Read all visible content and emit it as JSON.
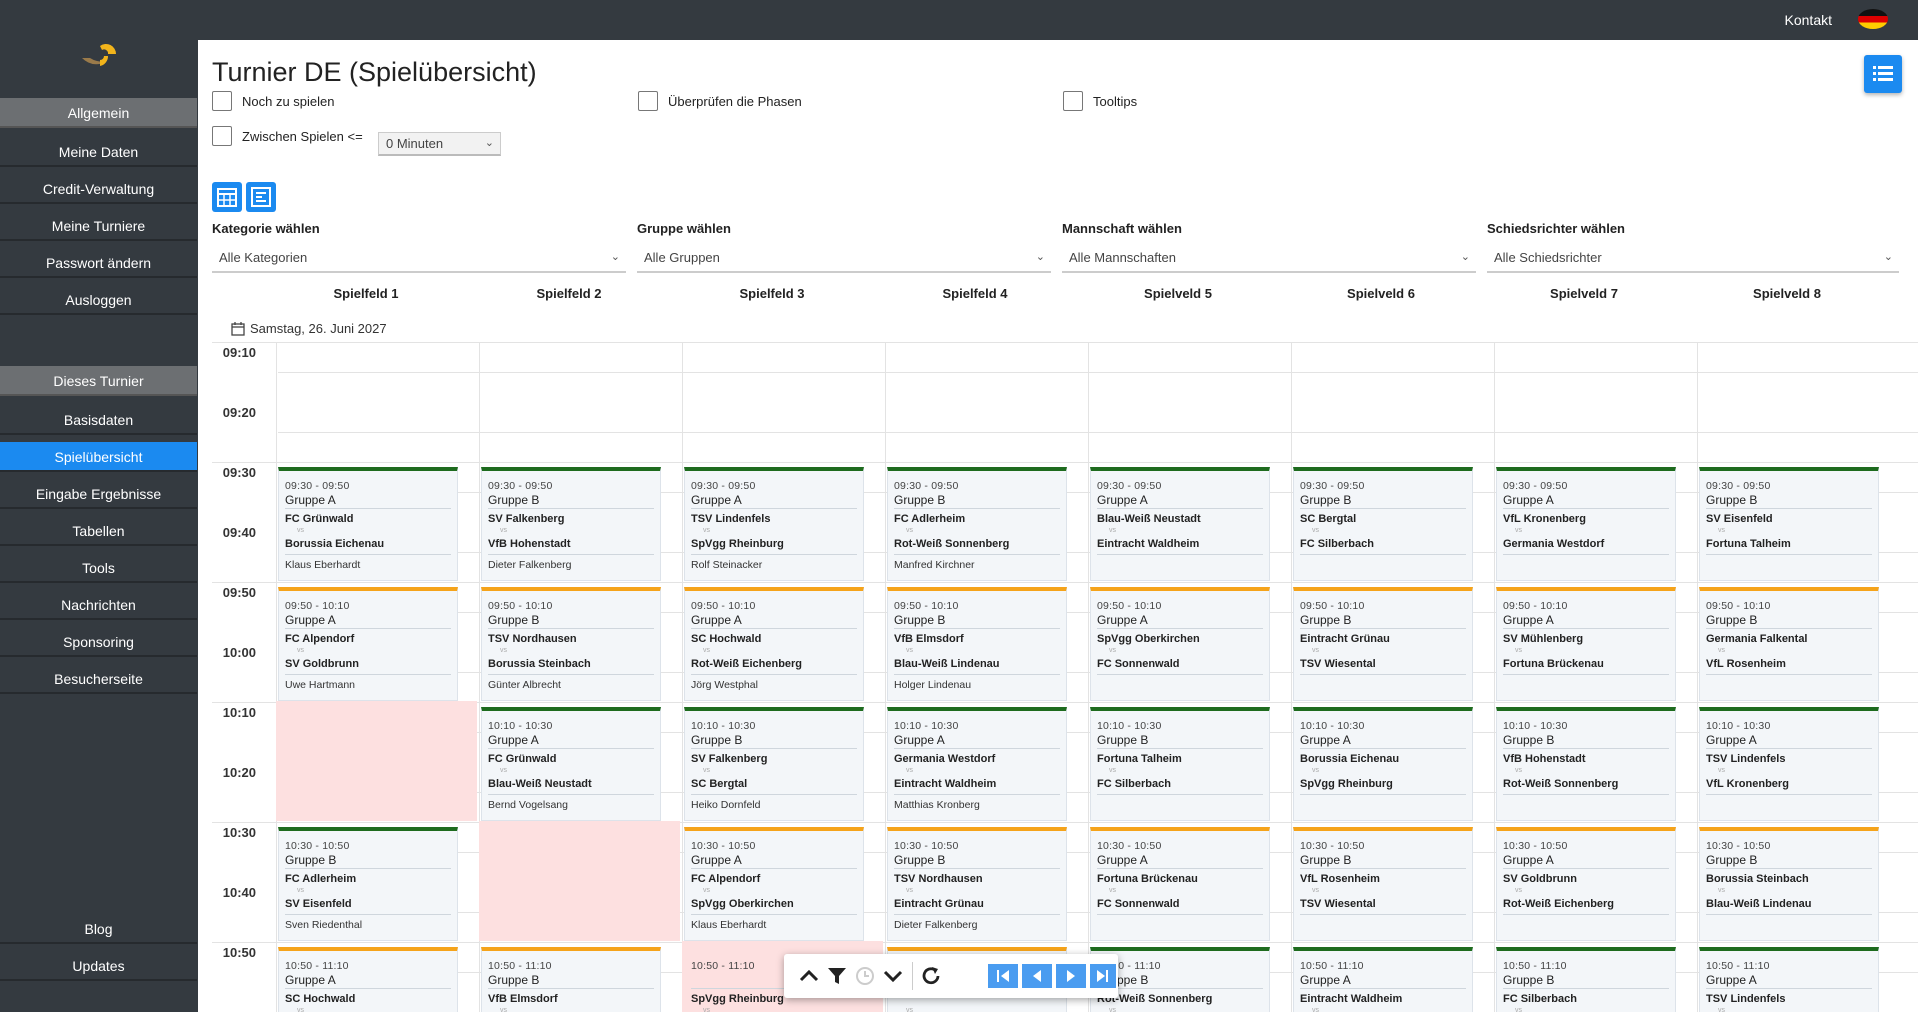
{
  "header": {
    "kontakt": "Kontakt"
  },
  "sidebar": {
    "section1": "Allgemein",
    "items1": [
      "Meine Daten",
      "Credit-Verwaltung",
      "Meine Turniere",
      "Passwort ändern",
      "Ausloggen"
    ],
    "section2": "Dieses Turnier",
    "items2": [
      "Basisdaten",
      "Spielübersicht",
      "Eingabe Ergebnisse",
      "Tabellen",
      "Tools",
      "Nachrichten",
      "Sponsoring",
      "Besucherseite"
    ],
    "active": "Spielübersicht",
    "bottom": [
      "Blog",
      "Updates"
    ]
  },
  "page": {
    "title": "Turnier DE (Spielübersicht)",
    "checkboxes": {
      "noch": "Noch zu spielen",
      "phasen": "Überprüfen die Phasen",
      "tooltips": "Tooltips",
      "zwischen": "Zwischen Spielen <="
    },
    "minutes_select": "0 Minuten"
  },
  "filters": [
    {
      "label": "Kategorie wählen",
      "value": "Alle Kategorien"
    },
    {
      "label": "Gruppe wählen",
      "value": "Alle Gruppen"
    },
    {
      "label": "Mannschaft wählen",
      "value": "Alle Mannschaften"
    },
    {
      "label": "Schiedsrichter wählen",
      "value": "Alle Schiedsrichter"
    }
  ],
  "fields": [
    "Spielfeld 1",
    "Spielfeld 2",
    "Spielfeld 3",
    "Spielfeld 4",
    "Spielveld 5",
    "Spielveld 6",
    "Spielveld 7",
    "Spielveld 8"
  ],
  "date": "Samstag, 26. Juni 2027",
  "times": [
    "09:10",
    "09:20",
    "09:30",
    "09:40",
    "09:50",
    "10:00",
    "10:10",
    "10:20",
    "10:30",
    "10:40",
    "10:50"
  ],
  "vs_label": "vs",
  "colors": {
    "accent": "#1b8af0",
    "status_played": "#1e6b1e",
    "status_pending": "#f5a31a",
    "empty_slot": "#fde0e0"
  },
  "rows": [
    {
      "time": "09:30 - 09:50",
      "cells": [
        {
          "g": "Gruppe A",
          "t1": "FC Grünwald",
          "t2": "Borussia Eichenau",
          "r": "Klaus Eberhardt",
          "s": "g"
        },
        {
          "g": "Gruppe B",
          "t1": "SV Falkenberg",
          "t2": "VfB Hohenstadt",
          "r": "Dieter Falkenberg",
          "s": "g"
        },
        {
          "g": "Gruppe A",
          "t1": "TSV Lindenfels",
          "t2": "SpVgg Rheinburg",
          "r": "Rolf Steinacker",
          "s": "g"
        },
        {
          "g": "Gruppe B",
          "t1": "FC Adlerheim",
          "t2": "Rot-Weiß Sonnenberg",
          "r": "Manfred Kirchner",
          "s": "g"
        },
        {
          "g": "Gruppe A",
          "t1": "Blau-Weiß Neustadt",
          "t2": "Eintracht Waldheim",
          "r": "",
          "s": "g"
        },
        {
          "g": "Gruppe B",
          "t1": "SC Bergtal",
          "t2": "FC Silberbach",
          "r": "",
          "s": "g"
        },
        {
          "g": "Gruppe A",
          "t1": "VfL Kronenberg",
          "t2": "Germania Westdorf",
          "r": "",
          "s": "g"
        },
        {
          "g": "Gruppe B",
          "t1": "SV Eisenfeld",
          "t2": "Fortuna Talheim",
          "r": "",
          "s": "g"
        }
      ]
    },
    {
      "time": "09:50 - 10:10",
      "cells": [
        {
          "g": "Gruppe A",
          "t1": "FC Alpendorf",
          "t2": "SV Goldbrunn",
          "r": "Uwe Hartmann",
          "s": "o"
        },
        {
          "g": "Gruppe B",
          "t1": "TSV Nordhausen",
          "t2": "Borussia Steinbach",
          "r": "Günter Albrecht",
          "s": "o"
        },
        {
          "g": "Gruppe A",
          "t1": "SC Hochwald",
          "t2": "Rot-Weiß Eichenberg",
          "r": "Jörg Westphal",
          "s": "o"
        },
        {
          "g": "Gruppe B",
          "t1": "VfB Elmsdorf",
          "t2": "Blau-Weiß Lindenau",
          "r": "Holger Lindenau",
          "s": "o"
        },
        {
          "g": "Gruppe A",
          "t1": "SpVgg Oberkirchen",
          "t2": "FC Sonnenwald",
          "r": "",
          "s": "o"
        },
        {
          "g": "Gruppe B",
          "t1": "Eintracht Grünau",
          "t2": "TSV Wiesental",
          "r": "",
          "s": "o"
        },
        {
          "g": "Gruppe A",
          "t1": "SV Mühlenberg",
          "t2": "Fortuna Brückenau",
          "r": "",
          "s": "o"
        },
        {
          "g": "Gruppe B",
          "t1": "Germania Falkental",
          "t2": "VfL Rosenheim",
          "r": "",
          "s": "o"
        }
      ]
    },
    {
      "time": "10:10 - 10:30",
      "cells": [
        null,
        {
          "g": "Gruppe A",
          "t1": "FC Grünwald",
          "t2": "Blau-Weiß Neustadt",
          "r": "Bernd Vogelsang",
          "s": "g"
        },
        {
          "g": "Gruppe B",
          "t1": "SV Falkenberg",
          "t2": "SC Bergtal",
          "r": "Heiko Dornfeld",
          "s": "g"
        },
        {
          "g": "Gruppe A",
          "t1": "Germania Westdorf",
          "t2": "Eintracht Waldheim",
          "r": "Matthias Kronberg",
          "s": "g"
        },
        {
          "g": "Gruppe B",
          "t1": "Fortuna Talheim",
          "t2": "FC Silberbach",
          "r": "",
          "s": "g"
        },
        {
          "g": "Gruppe A",
          "t1": "Borussia Eichenau",
          "t2": "SpVgg Rheinburg",
          "r": "",
          "s": "g"
        },
        {
          "g": "Gruppe B",
          "t1": "VfB Hohenstadt",
          "t2": "Rot-Weiß Sonnenberg",
          "r": "",
          "s": "g"
        },
        {
          "g": "Gruppe A",
          "t1": "TSV Lindenfels",
          "t2": "VfL Kronenberg",
          "r": "",
          "s": "g"
        }
      ]
    },
    {
      "time": "10:30 - 10:50",
      "cells": [
        {
          "g": "Gruppe B",
          "t1": "FC Adlerheim",
          "t2": "SV Eisenfeld",
          "r": "Sven Riedenthal",
          "s": "g"
        },
        null,
        {
          "g": "Gruppe A",
          "t1": "FC Alpendorf",
          "t2": "SpVgg Oberkirchen",
          "r": "Klaus Eberhardt",
          "s": "o"
        },
        {
          "g": "Gruppe B",
          "t1": "TSV Nordhausen",
          "t2": "Eintracht Grünau",
          "r": "Dieter Falkenberg",
          "s": "o"
        },
        {
          "g": "Gruppe A",
          "t1": "Fortuna Brückenau",
          "t2": "FC Sonnenwald",
          "r": "",
          "s": "o"
        },
        {
          "g": "Gruppe B",
          "t1": "VfL Rosenheim",
          "t2": "TSV Wiesental",
          "r": "",
          "s": "o"
        },
        {
          "g": "Gruppe A",
          "t1": "SV Goldbrunn",
          "t2": "Rot-Weiß Eichenberg",
          "r": "",
          "s": "o"
        },
        {
          "g": "Gruppe B",
          "t1": "Borussia Steinbach",
          "t2": "Blau-Weiß Lindenau",
          "r": "",
          "s": "o"
        }
      ]
    },
    {
      "time": "10:50 - 11:10",
      "cells": [
        {
          "g": "Gruppe A",
          "t1": "SC Hochwald",
          "t2": "",
          "r": "",
          "s": "o"
        },
        {
          "g": "Gruppe B",
          "t1": "VfB Elmsdorf",
          "t2": "",
          "r": "",
          "s": "o"
        },
        {
          "g": "",
          "t1": "SpVgg Rheinburg",
          "t2": "",
          "r": "",
          "s": "e"
        },
        {
          "g": "",
          "t1": "",
          "t2": "",
          "r": "",
          "s": "o"
        },
        {
          "g": "Gruppe B",
          "t1": "Rot-Weiß Sonnenberg",
          "t2": "",
          "r": "",
          "s": "g"
        },
        {
          "g": "Gruppe A",
          "t1": "Eintracht Waldheim",
          "t2": "",
          "r": "",
          "s": "g"
        },
        {
          "g": "Gruppe B",
          "t1": "FC Silberbach",
          "t2": "",
          "r": "",
          "s": "g"
        },
        {
          "g": "Gruppe A",
          "t1": "TSV Lindenfels",
          "t2": "",
          "r": "",
          "s": "g"
        }
      ]
    }
  ]
}
